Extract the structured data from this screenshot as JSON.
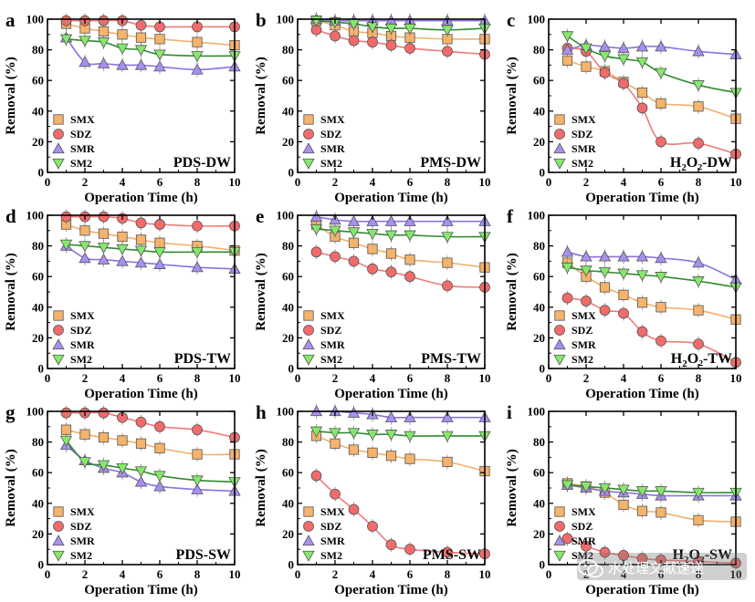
{
  "figure": {
    "series_styles": [
      {
        "name": "SMX",
        "marker": "square",
        "color": "#f5b36b",
        "line": "#f0b070"
      },
      {
        "name": "SDZ",
        "marker": "circle",
        "color": "#f26b6b",
        "line": "#f07a7a"
      },
      {
        "name": "SMR",
        "marker": "triangle-up",
        "color": "#a98ff0",
        "line": "#8a73e0"
      },
      {
        "name": "SM2",
        "marker": "triangle-down",
        "color": "#86e86b",
        "line": "#2e8b2e"
      }
    ],
    "err_color": "#888888"
  },
  "watermark": {
    "text": "水处理文献速递",
    "icon": "wechat-icon"
  },
  "chart_data": [
    {
      "type": "scatter",
      "panel": "a",
      "condition": "PDS-DW",
      "condition_base": "",
      "condition_sub": "",
      "condition_tail": "",
      "xlabel": "Operation Time (h)",
      "ylabel": "Removal (%)",
      "xlim": [
        0,
        10
      ],
      "ylim": [
        0,
        100
      ],
      "xticks": [
        0,
        2,
        4,
        6,
        8,
        10
      ],
      "yticks": [
        0,
        20,
        40,
        60,
        80,
        100
      ],
      "x": [
        1,
        2,
        3,
        4,
        5,
        6,
        8,
        10
      ],
      "series": [
        {
          "name": "SMX",
          "values": [
            97,
            94,
            92,
            90,
            88,
            87,
            85,
            83
          ]
        },
        {
          "name": "SDZ",
          "values": [
            99,
            99,
            99,
            99,
            96,
            95,
            95,
            95
          ]
        },
        {
          "name": "SMR",
          "values": [
            88,
            72,
            71,
            70,
            70,
            69,
            67,
            69
          ]
        },
        {
          "name": "SM2",
          "values": [
            87,
            86,
            85,
            81,
            80,
            77,
            76,
            76
          ]
        }
      ]
    },
    {
      "type": "scatter",
      "panel": "b",
      "condition": "PMS-DW",
      "condition_base": "",
      "condition_sub": "",
      "condition_tail": "",
      "xlabel": "Operation Time (h)",
      "ylabel": "Removal (%)",
      "xlim": [
        0,
        10
      ],
      "ylim": [
        0,
        100
      ],
      "xticks": [
        0,
        2,
        4,
        6,
        8,
        10
      ],
      "yticks": [
        0,
        20,
        40,
        60,
        80,
        100
      ],
      "x": [
        1,
        2,
        3,
        4,
        5,
        6,
        8,
        10
      ],
      "series": [
        {
          "name": "SMX",
          "values": [
            99,
            96,
            92,
            91,
            89,
            88,
            87,
            87
          ]
        },
        {
          "name": "SDZ",
          "values": [
            93,
            89,
            86,
            85,
            83,
            81,
            79,
            77
          ]
        },
        {
          "name": "SMR",
          "values": [
            100,
            99,
            99,
            99,
            99,
            99,
            99,
            99
          ]
        },
        {
          "name": "SM2",
          "values": [
            99,
            98,
            97,
            95,
            94,
            94,
            93,
            94
          ]
        }
      ]
    },
    {
      "type": "scatter",
      "panel": "c",
      "condition": "",
      "condition_base": "H",
      "condition_sub": "2",
      "condition_tail": "O₂-DW",
      "xlabel": "Operation Time (h)",
      "ylabel": "Removal (%)",
      "xlim": [
        0,
        10
      ],
      "ylim": [
        0,
        100
      ],
      "xticks": [
        0,
        2,
        4,
        6,
        8,
        10
      ],
      "yticks": [
        0,
        20,
        40,
        60,
        80,
        100
      ],
      "x": [
        1,
        2,
        3,
        4,
        5,
        6,
        8,
        10
      ],
      "series": [
        {
          "name": "SMX",
          "values": [
            73,
            69,
            66,
            59,
            52,
            45,
            43,
            35
          ]
        },
        {
          "name": "SDZ",
          "values": [
            81,
            79,
            65,
            58,
            42,
            20,
            19,
            12
          ]
        },
        {
          "name": "SMR",
          "values": [
            80,
            83,
            82,
            81,
            82,
            82,
            79,
            77
          ]
        },
        {
          "name": "SM2",
          "values": [
            89,
            81,
            76,
            74,
            72,
            65,
            57,
            52
          ]
        }
      ]
    },
    {
      "type": "scatter",
      "panel": "d",
      "condition": "PDS-TW",
      "condition_base": "",
      "condition_sub": "",
      "condition_tail": "",
      "xlabel": "Operation Time (h)",
      "ylabel": "Removal (%)",
      "xlim": [
        0,
        10
      ],
      "ylim": [
        0,
        100
      ],
      "xticks": [
        0,
        2,
        4,
        6,
        8,
        10
      ],
      "yticks": [
        0,
        20,
        40,
        60,
        80,
        100
      ],
      "x": [
        1,
        2,
        3,
        4,
        5,
        6,
        8,
        10
      ],
      "series": [
        {
          "name": "SMX",
          "values": [
            94,
            90,
            88,
            86,
            84,
            82,
            80,
            77
          ]
        },
        {
          "name": "SDZ",
          "values": [
            99,
            99,
            99,
            98,
            95,
            94,
            93,
            93
          ]
        },
        {
          "name": "SMR",
          "values": [
            80,
            72,
            71,
            70,
            69,
            68,
            66,
            65
          ]
        },
        {
          "name": "SM2",
          "values": [
            81,
            80,
            79,
            78,
            77,
            76,
            76,
            76
          ]
        }
      ]
    },
    {
      "type": "scatter",
      "panel": "e",
      "condition": "PMS-TW",
      "condition_base": "",
      "condition_sub": "",
      "condition_tail": "",
      "xlabel": "Operation Time (h)",
      "ylabel": "Removal (%)",
      "xlim": [
        0,
        10
      ],
      "ylim": [
        0,
        100
      ],
      "xticks": [
        0,
        2,
        4,
        6,
        8,
        10
      ],
      "yticks": [
        0,
        20,
        40,
        60,
        80,
        100
      ],
      "x": [
        1,
        2,
        3,
        4,
        5,
        6,
        8,
        10
      ],
      "series": [
        {
          "name": "SMX",
          "values": [
            94,
            86,
            82,
            78,
            75,
            71,
            69,
            66
          ]
        },
        {
          "name": "SDZ",
          "values": [
            76,
            73,
            70,
            65,
            63,
            60,
            54,
            53
          ]
        },
        {
          "name": "SMR",
          "values": [
            99,
            97,
            96,
            96,
            96,
            96,
            96,
            96
          ]
        },
        {
          "name": "SM2",
          "values": [
            91,
            90,
            89,
            88,
            87,
            87,
            86,
            86
          ]
        }
      ]
    },
    {
      "type": "scatter",
      "panel": "f",
      "condition": "",
      "condition_base": "H",
      "condition_sub": "2",
      "condition_tail": "O₂-TW",
      "xlabel": "Operation Time (h)",
      "ylabel": "Removal (%)",
      "xlim": [
        0,
        10
      ],
      "ylim": [
        0,
        100
      ],
      "xticks": [
        0,
        2,
        4,
        6,
        8,
        10
      ],
      "yticks": [
        0,
        20,
        40,
        60,
        80,
        100
      ],
      "x": [
        1,
        2,
        3,
        4,
        5,
        6,
        8,
        10
      ],
      "series": [
        {
          "name": "SMX",
          "values": [
            69,
            60,
            53,
            48,
            43,
            40,
            38,
            32
          ]
        },
        {
          "name": "SDZ",
          "values": [
            46,
            44,
            38,
            36,
            24,
            18,
            16,
            4
          ]
        },
        {
          "name": "SMR",
          "values": [
            76,
            73,
            73,
            73,
            73,
            72,
            69,
            58
          ]
        },
        {
          "name": "SM2",
          "values": [
            66,
            64,
            63,
            62,
            61,
            60,
            57,
            53
          ]
        }
      ]
    },
    {
      "type": "scatter",
      "panel": "g",
      "condition": "PDS-SW",
      "condition_base": "",
      "condition_sub": "",
      "condition_tail": "",
      "xlabel": "Operation Time (h)",
      "ylabel": "Removal (%)",
      "xlim": [
        0,
        10
      ],
      "ylim": [
        0,
        100
      ],
      "xticks": [
        0,
        2,
        4,
        6,
        8,
        10
      ],
      "yticks": [
        0,
        20,
        40,
        60,
        80,
        100
      ],
      "x": [
        1,
        2,
        3,
        4,
        5,
        6,
        8,
        10
      ],
      "series": [
        {
          "name": "SMX",
          "values": [
            88,
            85,
            83,
            81,
            79,
            76,
            72,
            72
          ]
        },
        {
          "name": "SDZ",
          "values": [
            99,
            99,
            99,
            96,
            93,
            90,
            88,
            83
          ]
        },
        {
          "name": "SMR",
          "values": [
            78,
            68,
            63,
            60,
            54,
            51,
            49,
            48
          ]
        },
        {
          "name": "SM2",
          "values": [
            81,
            67,
            65,
            63,
            61,
            58,
            55,
            54
          ]
        }
      ]
    },
    {
      "type": "scatter",
      "panel": "h",
      "condition": "PMS-SW",
      "condition_base": "",
      "condition_sub": "",
      "condition_tail": "",
      "xlabel": "Operation Time (h)",
      "ylabel": "Removal (%)",
      "xlim": [
        0,
        10
      ],
      "ylim": [
        0,
        100
      ],
      "xticks": [
        0,
        2,
        4,
        6,
        8,
        10
      ],
      "yticks": [
        0,
        20,
        40,
        60,
        80,
        100
      ],
      "x": [
        1,
        2,
        3,
        4,
        5,
        6,
        8,
        10
      ],
      "series": [
        {
          "name": "SMX",
          "values": [
            84,
            79,
            75,
            73,
            71,
            69,
            67,
            61
          ]
        },
        {
          "name": "SDZ",
          "values": [
            58,
            46,
            36,
            25,
            13,
            10,
            8,
            7
          ]
        },
        {
          "name": "SMR",
          "values": [
            100,
            100,
            99,
            98,
            96,
            96,
            96,
            96
          ]
        },
        {
          "name": "SM2",
          "values": [
            87,
            86,
            86,
            85,
            85,
            84,
            84,
            84
          ]
        }
      ]
    },
    {
      "type": "scatter",
      "panel": "i",
      "condition": "",
      "condition_base": "H",
      "condition_sub": "2",
      "condition_tail": "O₂-SW",
      "xlabel": "Operation Time (h)",
      "ylabel": "Removal (%)",
      "xlim": [
        0,
        10
      ],
      "ylim": [
        0,
        100
      ],
      "xticks": [
        0,
        2,
        4,
        6,
        8,
        10
      ],
      "yticks": [
        0,
        20,
        40,
        60,
        80,
        100
      ],
      "x": [
        1,
        2,
        3,
        4,
        5,
        6,
        8,
        10
      ],
      "series": [
        {
          "name": "SMX",
          "values": [
            53,
            51,
            47,
            39,
            35,
            34,
            29,
            28
          ]
        },
        {
          "name": "SDZ",
          "values": [
            17,
            12,
            8,
            6,
            4,
            3,
            2,
            1
          ]
        },
        {
          "name": "SMR",
          "values": [
            52,
            50,
            48,
            47,
            46,
            45,
            45,
            45
          ]
        },
        {
          "name": "SM2",
          "values": [
            52,
            51,
            50,
            49,
            48,
            48,
            47,
            47
          ]
        }
      ]
    }
  ]
}
